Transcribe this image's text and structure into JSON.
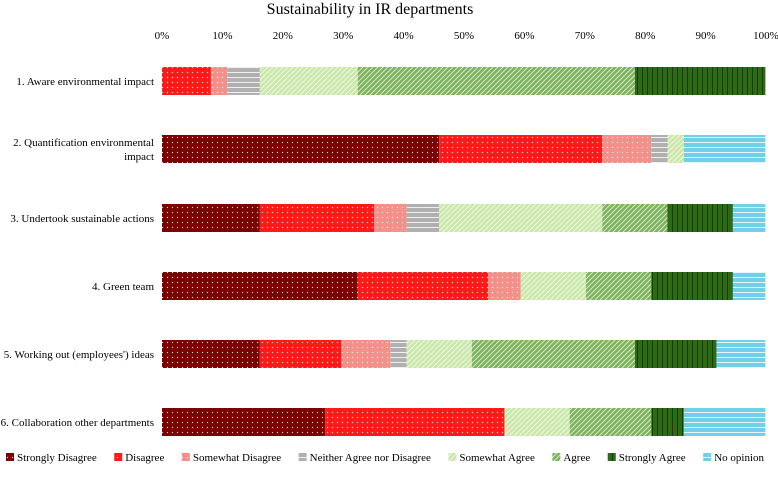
{
  "chart_data": {
    "type": "bar",
    "orientation": "horizontal",
    "stacked": "100%",
    "title": "Sustainability in IR departments",
    "xlabel": "",
    "ylabel": "",
    "xlim": [
      0,
      100
    ],
    "x_ticks": [
      "0%",
      "10%",
      "20%",
      "30%",
      "40%",
      "50%",
      "60%",
      "70%",
      "80%",
      "90%",
      "100%"
    ],
    "grid": false,
    "legend_position": "bottom",
    "categories": [
      "1. Aware environmental impact",
      [
        "2. Quantification environmental",
        "impact"
      ],
      "3. Undertook sustainable actions",
      "4. Green team",
      "5. Working out (employees') ideas",
      "6. Collaboration other departments"
    ],
    "series": [
      {
        "name": "Strongly Disagree",
        "color": "#7b0000",
        "pattern": "dots",
        "values": [
          0,
          45.9,
          16.2,
          32.4,
          16.2,
          27
        ]
      },
      {
        "name": "Disagree",
        "color": "#ff1a1a",
        "pattern": "dots",
        "values": [
          8.1,
          27,
          18.9,
          21.6,
          13.5,
          29.7
        ]
      },
      {
        "name": "Somewhat Disagree",
        "color": "#f4908a",
        "pattern": "dots",
        "values": [
          2.7,
          8.1,
          5.4,
          5.4,
          8.1,
          0
        ]
      },
      {
        "name": "Neither Agree nor Disagree",
        "color": "#b0b0b0",
        "pattern": "hlines",
        "values": [
          5.4,
          2.7,
          5.4,
          0,
          2.7,
          0
        ]
      },
      {
        "name": "Somewhat Agree",
        "color": "#c9e7a8",
        "pattern": "diag",
        "values": [
          16.2,
          2.7,
          27,
          10.8,
          10.8,
          10.8
        ]
      },
      {
        "name": "Agree",
        "color": "#7cb35a",
        "pattern": "diag",
        "values": [
          45.9,
          0,
          10.8,
          10.8,
          27,
          13.5
        ]
      },
      {
        "name": "Strongly Agree",
        "color": "#2d6a14",
        "pattern": "vlines",
        "values": [
          21.6,
          0,
          10.8,
          13.5,
          13.5,
          5.4
        ]
      },
      {
        "name": "No opinion",
        "color": "#6fd0e8",
        "pattern": "hlines",
        "values": [
          0,
          13.5,
          5.4,
          5.4,
          8.1,
          13.5
        ]
      }
    ]
  }
}
